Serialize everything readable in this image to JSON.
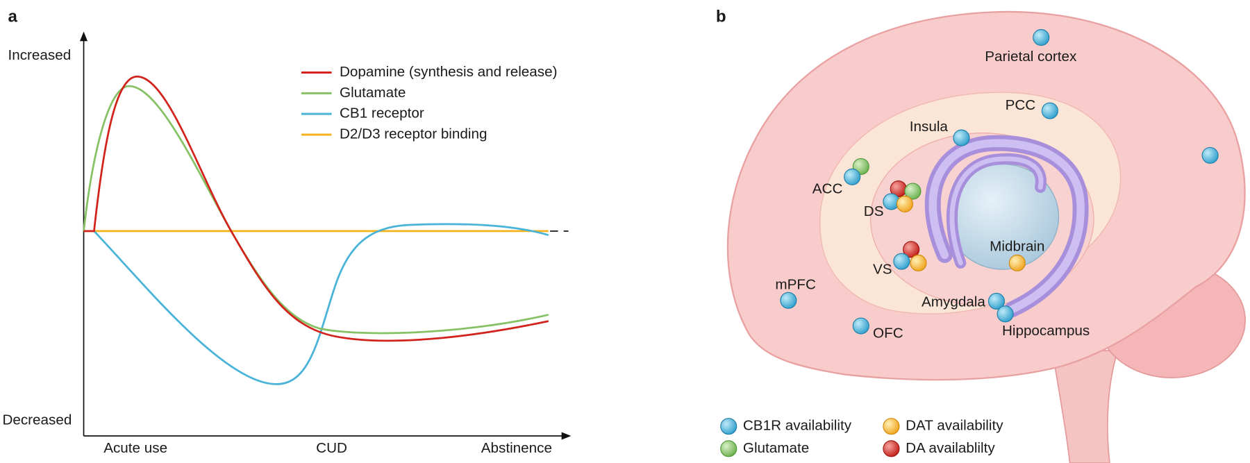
{
  "panel_a": {
    "label": "a",
    "y_axis": {
      "top": "Increased",
      "bottom": "Decreased"
    },
    "x_axis": [
      "Acute use",
      "CUD",
      "Abstinence"
    ],
    "legend": [
      {
        "name": "Dopamine (synthesis and release)",
        "color": "#d2231c"
      },
      {
        "name": "Glutamate",
        "color": "#86c265"
      },
      {
        "name": "CB1 receptor",
        "color": "#49b3d8"
      },
      {
        "name": "D2/D3 receptor binding",
        "color": "#f5b21c"
      }
    ]
  },
  "panel_b": {
    "label": "b",
    "regions": [
      "Parietal cortex",
      "PCC",
      "Insula",
      "ACC",
      "DS",
      "VS",
      "Midbrain",
      "mPFC",
      "Amygdala",
      "Hippocampus",
      "OFC"
    ],
    "legend": [
      "CB1R availability",
      "DAT availability",
      "Glutamate",
      "DA availablilty"
    ]
  }
}
